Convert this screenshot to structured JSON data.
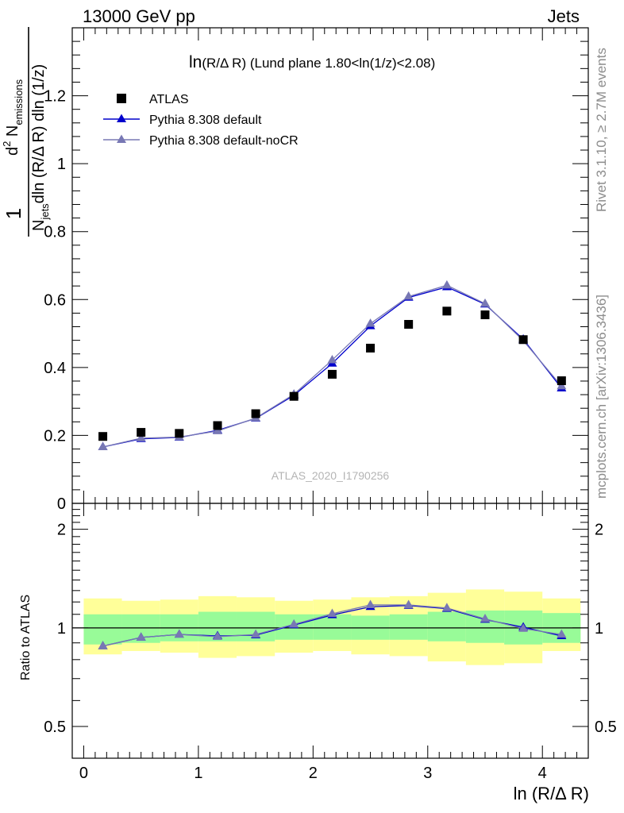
{
  "header": {
    "energy_label": "13000 GeV pp",
    "process_label": "Jets"
  },
  "side_labels": {
    "rivet": "Rivet 3.1.10, ≥ 2.7M events",
    "mcplots": "mcplots.cern.ch [arXiv:1306.3436]"
  },
  "watermark": "ATLAS_2020_I1790256",
  "main_title": {
    "main": "ln",
    "sub": "(R/Δ R)",
    "rest": " (Lund plane 1.80<ln(1/z)<2.08)"
  },
  "y_label": {
    "frac_one": "1",
    "den_pre": "N",
    "den_sub": "jets",
    "den_post": "dln (R/Δ R) dln (1/z)",
    "num_pre": "d",
    "num_sup": "2",
    "num_mid": " N",
    "num_sub": "emissions"
  },
  "ratio_y_label": "Ratio to ATLAS",
  "x_label": "ln (R/Δ R)",
  "colors": {
    "data": "#000000",
    "default": "#0000cc",
    "nocr": "#7878b4",
    "band_inner": "#98fb98",
    "band_outer": "#ffff99"
  },
  "chart_data": [
    {
      "type": "scatter",
      "title": "ln(R/Δ R) (Lund plane 1.80<ln(1/z)<2.08)",
      "xlabel": "",
      "xlim": [
        -0.1,
        4.4
      ],
      "ylim": [
        0,
        1.4
      ],
      "yticks": [
        0,
        0.2,
        0.4,
        0.6,
        0.8,
        1,
        1.2
      ],
      "ytick_labels": [
        "0",
        "0.2",
        "0.4",
        "0.6",
        "0.8",
        "1",
        "1.2"
      ],
      "legend_position": "top-left",
      "x": [
        0.167,
        0.5,
        0.833,
        1.167,
        1.5,
        1.833,
        2.167,
        2.5,
        2.833,
        3.167,
        3.5,
        3.833,
        4.167
      ],
      "series": [
        {
          "name": "ATLAS",
          "marker": "square",
          "values": [
            0.197,
            0.209,
            0.206,
            0.229,
            0.264,
            0.315,
            0.38,
            0.457,
            0.527,
            0.566,
            0.555,
            0.482,
            0.361
          ]
        },
        {
          "name": "Pythia 8.308 default",
          "marker": "triangle",
          "values": [
            0.166,
            0.19,
            0.194,
            0.215,
            0.25,
            0.318,
            0.412,
            0.522,
            0.606,
            0.637,
            0.586,
            0.483,
            0.339
          ]
        },
        {
          "name": "Pythia 8.308 default-noCR",
          "marker": "triangle",
          "values": [
            0.166,
            0.192,
            0.195,
            0.213,
            0.251,
            0.321,
            0.422,
            0.529,
            0.609,
            0.642,
            0.588,
            0.479,
            0.345
          ]
        }
      ]
    },
    {
      "type": "line",
      "ylabel": "Ratio to ATLAS",
      "xlabel": "ln (R/Δ R)",
      "xlim": [
        -0.1,
        4.4
      ],
      "ylim": [
        0.4,
        2.4
      ],
      "xticks": [
        0,
        1,
        2,
        3,
        4
      ],
      "xtick_labels": [
        "0",
        "1",
        "2",
        "3",
        "4"
      ],
      "yticks": [
        0.5,
        1,
        2
      ],
      "ytick_labels": [
        "0.5",
        "1",
        "2"
      ],
      "x": [
        0.167,
        0.5,
        0.833,
        1.167,
        1.5,
        1.833,
        2.167,
        2.5,
        2.833,
        3.167,
        3.5,
        3.833,
        4.167
      ],
      "bin_edges": [
        0,
        0.333,
        0.667,
        1,
        1.333,
        1.667,
        2,
        2.333,
        2.667,
        3,
        3.333,
        3.667,
        4,
        4.333
      ],
      "bands": {
        "inner_low": [
          0.89,
          0.9,
          0.91,
          0.91,
          0.91,
          0.92,
          0.92,
          0.92,
          0.92,
          0.91,
          0.9,
          0.89,
          0.9
        ],
        "inner_high": [
          1.1,
          1.1,
          1.1,
          1.12,
          1.12,
          1.1,
          1.1,
          1.09,
          1.1,
          1.12,
          1.13,
          1.13,
          1.11
        ],
        "outer_low": [
          0.83,
          0.85,
          0.84,
          0.81,
          0.82,
          0.84,
          0.85,
          0.83,
          0.82,
          0.79,
          0.77,
          0.78,
          0.85
        ],
        "outer_high": [
          1.23,
          1.21,
          1.22,
          1.25,
          1.24,
          1.21,
          1.22,
          1.24,
          1.25,
          1.28,
          1.31,
          1.29,
          1.23
        ]
      },
      "series": [
        {
          "name": "Pythia 8.308 default",
          "values": [
            0.88,
            0.935,
            0.955,
            0.945,
            0.95,
            1.02,
            1.095,
            1.16,
            1.17,
            1.145,
            1.06,
            1.005,
            0.945
          ]
        },
        {
          "name": "Pythia 8.308 default-noCR",
          "values": [
            0.88,
            0.935,
            0.955,
            0.94,
            0.955,
            1.025,
            1.105,
            1.175,
            1.175,
            1.15,
            1.065,
            0.995,
            0.955
          ]
        }
      ]
    }
  ]
}
